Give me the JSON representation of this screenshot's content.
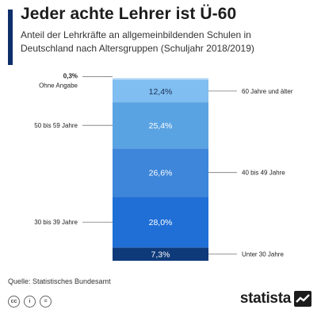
{
  "header": {
    "title": "Jeder achte Lehrer ist Ü-60",
    "subtitle_line1": "Anteil der Lehrkräfte an allgemeinbildenden Schulen in",
    "subtitle_line2": "Deutschland nach Altersgruppen  (Schuljahr 2018/2019)"
  },
  "chart_data": {
    "type": "bar",
    "stacked": true,
    "unit": "%",
    "segments": [
      {
        "category": "Unter 30 Jahre",
        "value": 7.3,
        "label": "7,3%",
        "color": "#0e3a7a",
        "label_side": "right"
      },
      {
        "category": "30 bis 39 Jahre",
        "value": 28.0,
        "label": "28,0%",
        "color": "#1f6fd6",
        "label_side": "left"
      },
      {
        "category": "40 bis 49 Jahre",
        "value": 26.6,
        "label": "26,6%",
        "color": "#3d86d9",
        "label_side": "right"
      },
      {
        "category": "50 bis 59 Jahre",
        "value": 25.4,
        "label": "25,4%",
        "color": "#5aa3e2",
        "label_side": "left"
      },
      {
        "category": "60 Jahre und älter",
        "value": 12.4,
        "label": "12,4%",
        "color": "#80bdf0",
        "label_side": "right"
      },
      {
        "category": "Ohne Angabe",
        "value": 0.3,
        "label": "0,3%",
        "color": "#a9d3f7",
        "label_side": "left"
      }
    ]
  },
  "footer": {
    "source": "Quelle: Statistisches Bundesamt",
    "brand": "statista",
    "license_icons": [
      "cc-icon",
      "person-icon",
      "equals-icon"
    ],
    "license_glyphs": [
      "cc",
      "i",
      "="
    ]
  }
}
